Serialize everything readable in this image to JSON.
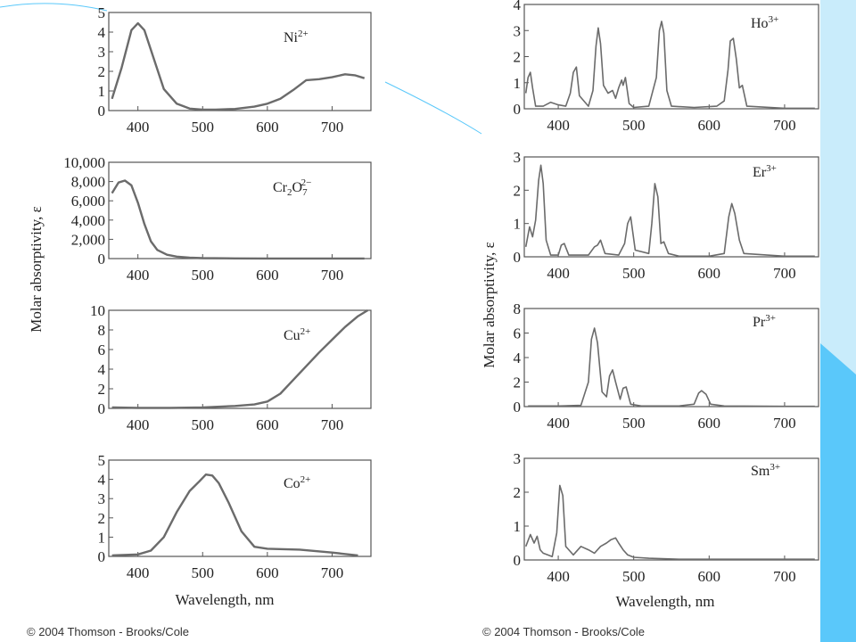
{
  "colors": {
    "background": "#ffffff",
    "side_band": "#bfe8fb",
    "accent_band": "#5ac8fa",
    "curve": "#6b6b6b",
    "frame": "#555555"
  },
  "left": {
    "ylabel": "Molar absorptivity, ε",
    "xlabel": "Wavelength, nm",
    "copyright": "© 2004 Thomson - Brooks/Cole"
  },
  "right": {
    "ylabel": "Molar absorptivity, ε",
    "xlabel": "Wavelength, nm",
    "copyright": "© 2004 Thomson - Brooks/Cole"
  },
  "chart_data": [
    {
      "type": "line",
      "label": "Ni2+",
      "xlim": [
        355,
        760
      ],
      "ylim": [
        0,
        5
      ],
      "xticks": [
        400,
        500,
        600,
        700
      ],
      "yticks": [
        0,
        1,
        2,
        3,
        4,
        5
      ],
      "series": [
        {
          "x": [
            360,
            375,
            390,
            400,
            410,
            425,
            440,
            460,
            480,
            500,
            520,
            550,
            580,
            600,
            620,
            640,
            660,
            680,
            700,
            720,
            735,
            750
          ],
          "y": [
            0.6,
            2.2,
            4.1,
            4.45,
            4.1,
            2.6,
            1.1,
            0.35,
            0.1,
            0.05,
            0.05,
            0.08,
            0.2,
            0.35,
            0.6,
            1.05,
            1.55,
            1.6,
            1.7,
            1.85,
            1.8,
            1.65
          ]
        }
      ]
    },
    {
      "type": "line",
      "label": "Cr2O7 2−",
      "xlim": [
        355,
        760
      ],
      "ylim": [
        0,
        10000
      ],
      "xticks": [
        400,
        500,
        600,
        700
      ],
      "yticks": [
        0,
        2000,
        4000,
        6000,
        8000,
        10000
      ],
      "ytick_labels": [
        "0",
        "2,000",
        "4,000",
        "6,000",
        "8,000",
        "10,000"
      ],
      "series": [
        {
          "x": [
            360,
            370,
            380,
            390,
            400,
            410,
            420,
            430,
            445,
            460,
            480,
            500,
            550,
            600,
            650,
            700,
            750
          ],
          "y": [
            6800,
            7900,
            8100,
            7600,
            5800,
            3600,
            1800,
            900,
            400,
            200,
            100,
            50,
            20,
            10,
            5,
            5,
            5
          ]
        }
      ]
    },
    {
      "type": "line",
      "label": "Cu2+",
      "xlim": [
        355,
        760
      ],
      "ylim": [
        0,
        10
      ],
      "xticks": [
        400,
        500,
        600,
        700
      ],
      "yticks": [
        0,
        2,
        4,
        6,
        8,
        10
      ],
      "series": [
        {
          "x": [
            360,
            400,
            450,
            500,
            550,
            580,
            600,
            620,
            640,
            660,
            680,
            700,
            720,
            740,
            755
          ],
          "y": [
            0.1,
            0.05,
            0.05,
            0.1,
            0.25,
            0.4,
            0.7,
            1.5,
            2.9,
            4.3,
            5.7,
            7.0,
            8.3,
            9.4,
            10.0
          ]
        }
      ]
    },
    {
      "type": "line",
      "label": "Co2+",
      "xlim": [
        355,
        760
      ],
      "ylim": [
        0,
        5
      ],
      "xticks": [
        400,
        500,
        600,
        700
      ],
      "yticks": [
        0,
        1,
        2,
        3,
        4,
        5
      ],
      "series": [
        {
          "x": [
            360,
            400,
            420,
            440,
            460,
            480,
            495,
            505,
            515,
            525,
            540,
            560,
            580,
            600,
            650,
            700,
            740
          ],
          "y": [
            0.05,
            0.1,
            0.3,
            1.0,
            2.3,
            3.4,
            3.9,
            4.25,
            4.2,
            3.8,
            2.8,
            1.3,
            0.5,
            0.4,
            0.35,
            0.2,
            0.05
          ]
        }
      ]
    },
    {
      "type": "line",
      "label": "Ho3+",
      "xlim": [
        355,
        745
      ],
      "ylim": [
        0,
        4
      ],
      "xticks": [
        400,
        500,
        600,
        700
      ],
      "yticks": [
        0,
        1,
        2,
        3,
        4
      ],
      "series": [
        {
          "x": [
            357,
            360,
            363,
            366,
            370,
            380,
            390,
            400,
            410,
            416,
            420,
            424,
            428,
            440,
            446,
            450,
            453,
            456,
            460,
            466,
            472,
            476,
            480,
            484,
            486,
            489,
            494,
            500,
            520,
            530,
            534,
            537,
            540,
            544,
            550,
            580,
            610,
            620,
            625,
            628,
            632,
            636,
            640,
            644,
            650,
            700,
            740
          ],
          "y": [
            0.6,
            1.2,
            1.4,
            0.8,
            0.1,
            0.1,
            0.25,
            0.15,
            0.1,
            0.6,
            1.4,
            1.6,
            0.5,
            0.1,
            0.7,
            2.4,
            3.1,
            2.5,
            0.9,
            0.6,
            0.7,
            0.4,
            0.8,
            1.1,
            0.9,
            1.2,
            0.2,
            0.05,
            0.1,
            1.2,
            3.0,
            3.35,
            2.9,
            0.7,
            0.1,
            0.05,
            0.1,
            0.3,
            1.5,
            2.6,
            2.7,
            1.9,
            0.8,
            0.9,
            0.1,
            0.02,
            0.02
          ]
        }
      ]
    },
    {
      "type": "line",
      "label": "Er3+",
      "xlim": [
        355,
        745
      ],
      "ylim": [
        0,
        3
      ],
      "xticks": [
        400,
        500,
        600,
        700
      ],
      "yticks": [
        0,
        1,
        2,
        3
      ],
      "series": [
        {
          "x": [
            357,
            362,
            366,
            370,
            374,
            377,
            380,
            384,
            390,
            400,
            404,
            408,
            414,
            440,
            448,
            452,
            456,
            462,
            480,
            488,
            492,
            496,
            502,
            520,
            524,
            528,
            532,
            536,
            540,
            546,
            560,
            600,
            620,
            626,
            630,
            634,
            640,
            646,
            700,
            740
          ],
          "y": [
            0.3,
            0.9,
            0.6,
            1.1,
            2.3,
            2.75,
            2.2,
            0.5,
            0.05,
            0.05,
            0.35,
            0.4,
            0.05,
            0.05,
            0.3,
            0.35,
            0.5,
            0.1,
            0.05,
            0.4,
            1.0,
            1.2,
            0.2,
            0.1,
            1.0,
            2.2,
            1.8,
            0.4,
            0.45,
            0.1,
            0.02,
            0.02,
            0.1,
            1.2,
            1.6,
            1.3,
            0.5,
            0.1,
            0.02,
            0.02
          ]
        }
      ]
    },
    {
      "type": "line",
      "label": "Pr3+",
      "xlim": [
        355,
        745
      ],
      "ylim": [
        0,
        8
      ],
      "xticks": [
        400,
        500,
        600,
        700
      ],
      "yticks": [
        0,
        2,
        4,
        6,
        8
      ],
      "series": [
        {
          "x": [
            360,
            400,
            430,
            440,
            444,
            448,
            452,
            458,
            464,
            468,
            472,
            476,
            482,
            486,
            490,
            496,
            510,
            560,
            580,
            586,
            590,
            596,
            602,
            620,
            700,
            740
          ],
          "y": [
            0.05,
            0.05,
            0.1,
            2.0,
            5.5,
            6.4,
            5.2,
            1.2,
            0.8,
            2.5,
            3.0,
            2.0,
            0.6,
            1.5,
            1.6,
            0.2,
            0.05,
            0.05,
            0.2,
            1.1,
            1.3,
            1.0,
            0.2,
            0.05,
            0.02,
            0.02
          ]
        }
      ]
    },
    {
      "type": "line",
      "label": "Sm3+",
      "xlim": [
        355,
        745
      ],
      "ylim": [
        0,
        3
      ],
      "xticks": [
        400,
        500,
        600,
        700
      ],
      "yticks": [
        0,
        1,
        2,
        3
      ],
      "series": [
        {
          "x": [
            357,
            363,
            368,
            372,
            376,
            380,
            386,
            392,
            398,
            402,
            406,
            410,
            414,
            420,
            430,
            440,
            448,
            456,
            464,
            470,
            476,
            480,
            486,
            492,
            500,
            520,
            560,
            600,
            700,
            740
          ],
          "y": [
            0.4,
            0.75,
            0.5,
            0.7,
            0.3,
            0.2,
            0.15,
            0.1,
            0.8,
            2.2,
            1.9,
            0.4,
            0.3,
            0.15,
            0.4,
            0.3,
            0.2,
            0.4,
            0.5,
            0.6,
            0.65,
            0.5,
            0.3,
            0.15,
            0.08,
            0.05,
            0.02,
            0.02,
            0.02,
            0.02
          ]
        }
      ]
    }
  ]
}
